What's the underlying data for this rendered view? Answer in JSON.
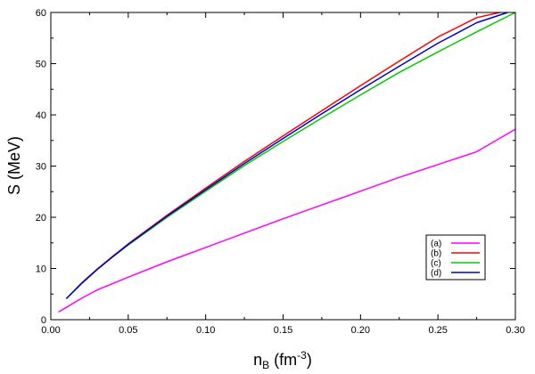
{
  "chart_data": {
    "type": "line",
    "xlabel": {
      "base": "n",
      "sub": "B",
      "unit_prefix": " (fm",
      "sup": "-3",
      "unit_suffix": ")"
    },
    "ylabel": "S (MeV)",
    "xlim": [
      0.0,
      0.3
    ],
    "ylim": [
      0,
      60
    ],
    "x_ticks": [
      "0.00",
      "0.05",
      "0.10",
      "0.15",
      "0.20",
      "0.25",
      "0.30"
    ],
    "y_ticks": [
      "0",
      "10",
      "20",
      "30",
      "40",
      "50",
      "60"
    ],
    "grid": false,
    "legend_position": "lower-right",
    "series": [
      {
        "name": "(a)",
        "color": "#ff00ff",
        "x": [
          0.005,
          0.01,
          0.02,
          0.03,
          0.05,
          0.075,
          0.1,
          0.125,
          0.15,
          0.175,
          0.2,
          0.225,
          0.25,
          0.275,
          0.3
        ],
        "y": [
          1.5,
          2.4,
          4.2,
          5.8,
          8.3,
          11.3,
          14.1,
          16.9,
          19.7,
          22.4,
          25.1,
          27.8,
          30.3,
          32.8,
          37.2
        ]
      },
      {
        "name": "(b)",
        "color": "#ff0000",
        "x": [
          0.01,
          0.02,
          0.03,
          0.04,
          0.05,
          0.075,
          0.1,
          0.125,
          0.15,
          0.175,
          0.2,
          0.225,
          0.25,
          0.275,
          0.29
        ],
        "y": [
          4.1,
          7.2,
          9.9,
          12.4,
          14.8,
          20.4,
          25.7,
          30.9,
          35.9,
          40.8,
          45.7,
          50.5,
          55.2,
          59.0,
          60.0
        ]
      },
      {
        "name": "(c)",
        "color": "#00cc00",
        "x": [
          0.01,
          0.02,
          0.03,
          0.04,
          0.05,
          0.075,
          0.1,
          0.125,
          0.15,
          0.175,
          0.2,
          0.225,
          0.25,
          0.275,
          0.3
        ],
        "y": [
          4.1,
          7.1,
          9.8,
          12.3,
          14.6,
          20.0,
          25.1,
          30.1,
          34.8,
          39.4,
          43.9,
          48.3,
          52.3,
          56.2,
          60.0
        ]
      },
      {
        "name": "(d)",
        "color": "#0000cc",
        "x": [
          0.01,
          0.02,
          0.03,
          0.04,
          0.05,
          0.075,
          0.1,
          0.125,
          0.15,
          0.175,
          0.2,
          0.225,
          0.25,
          0.275,
          0.295
        ],
        "y": [
          4.1,
          7.1,
          9.8,
          12.3,
          14.7,
          20.2,
          25.4,
          30.5,
          35.4,
          40.2,
          44.9,
          49.5,
          54.0,
          58.0,
          60.0
        ]
      }
    ]
  }
}
